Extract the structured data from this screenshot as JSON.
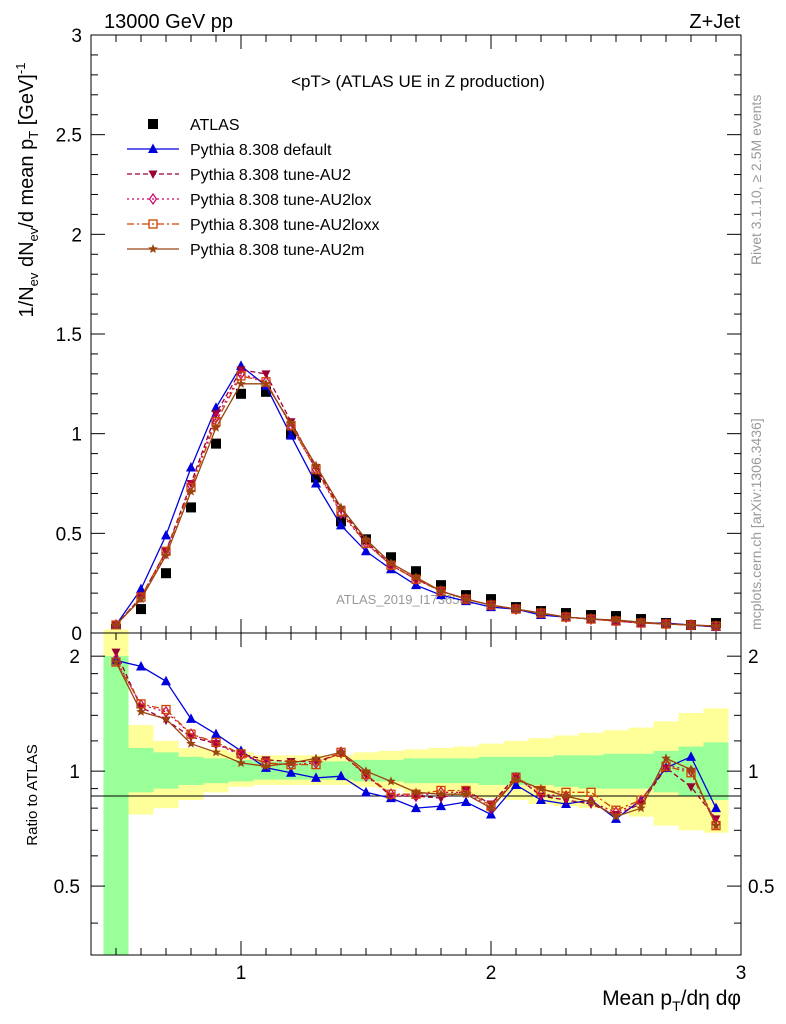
{
  "header": {
    "left": "13000 GeV pp",
    "right": "Z+Jet"
  },
  "side_labels": {
    "rivet": "Rivet 3.1.10, ≥ 2.5M events",
    "mcplots": "mcplots.cern.ch [arXiv:1306.3436]"
  },
  "watermark": "ATLAS_2019_I1736531",
  "chart_data": [
    {
      "type": "line",
      "title": "<pT> (ATLAS UE in Z production)",
      "ylabel": "1/N_ev dN_ev/d mean p_T [GeV]^-1",
      "xlabel": "Mean p_T/dη dφ",
      "xlim": [
        0.4,
        3.0
      ],
      "ylim": [
        0,
        3
      ],
      "x_ticks": [
        "1",
        "2",
        "3"
      ],
      "y_ticks": [
        "0",
        "0.5",
        "1",
        "1.5",
        "2",
        "2.5",
        "3"
      ],
      "legend_position": "top-left",
      "x": [
        0.5,
        0.6,
        0.7,
        0.8,
        0.9,
        1.0,
        1.1,
        1.2,
        1.3,
        1.4,
        1.5,
        1.6,
        1.7,
        1.8,
        1.9,
        2.0,
        2.1,
        2.2,
        2.3,
        2.4,
        2.5,
        2.6,
        2.7,
        2.8,
        2.9
      ],
      "series": [
        {
          "name": "ATLAS",
          "color": "#000000",
          "marker": "square",
          "dash": "none",
          "values": [
            0.02,
            0.12,
            0.3,
            0.63,
            0.95,
            1.2,
            1.21,
            1.0,
            0.78,
            0.56,
            0.47,
            0.38,
            0.31,
            0.24,
            0.19,
            0.17,
            0.13,
            0.11,
            0.1,
            0.09,
            0.085,
            0.07,
            0.05,
            0.04,
            0.05
          ]
        },
        {
          "name": "Pythia 8.308 default",
          "color": "#0000dd",
          "marker": "triangle-up",
          "dash": "none",
          "values": [
            0.04,
            0.22,
            0.49,
            0.83,
            1.13,
            1.34,
            1.24,
            0.99,
            0.75,
            0.54,
            0.41,
            0.32,
            0.24,
            0.19,
            0.16,
            0.13,
            0.12,
            0.09,
            0.08,
            0.07,
            0.06,
            0.05,
            0.05,
            0.04,
            0.03
          ]
        },
        {
          "name": "Pythia 8.308 tune-AU2",
          "color": "#990033",
          "marker": "triangle-down",
          "dash": "5,3",
          "values": [
            0.04,
            0.18,
            0.41,
            0.75,
            1.1,
            1.32,
            1.3,
            1.06,
            0.83,
            0.62,
            0.46,
            0.34,
            0.27,
            0.21,
            0.17,
            0.14,
            0.12,
            0.1,
            0.08,
            0.07,
            0.06,
            0.05,
            0.045,
            0.04,
            0.03
          ]
        },
        {
          "name": "Pythia 8.308 tune-AU2lox",
          "color": "#cc0066",
          "marker": "diamond",
          "dash": "2,3",
          "values": [
            0.04,
            0.18,
            0.4,
            0.74,
            1.08,
            1.3,
            1.26,
            1.04,
            0.82,
            0.6,
            0.45,
            0.34,
            0.27,
            0.21,
            0.17,
            0.14,
            0.12,
            0.1,
            0.08,
            0.07,
            0.06,
            0.05,
            0.045,
            0.04,
            0.035
          ]
        },
        {
          "name": "Pythia 8.308 tune-AU2loxx",
          "color": "#cc4400",
          "marker": "square-open",
          "dash": "7,3,2,3",
          "values": [
            0.04,
            0.18,
            0.41,
            0.73,
            1.06,
            1.29,
            1.26,
            1.04,
            0.82,
            0.61,
            0.45,
            0.34,
            0.27,
            0.21,
            0.17,
            0.14,
            0.12,
            0.1,
            0.08,
            0.07,
            0.06,
            0.05,
            0.045,
            0.04,
            0.035
          ]
        },
        {
          "name": "Pythia 8.308 tune-AU2m",
          "color": "#994411",
          "marker": "star",
          "dash": "none",
          "values": [
            0.04,
            0.17,
            0.39,
            0.71,
            1.03,
            1.25,
            1.25,
            1.05,
            0.84,
            0.63,
            0.47,
            0.35,
            0.28,
            0.21,
            0.17,
            0.14,
            0.12,
            0.1,
            0.08,
            0.07,
            0.065,
            0.055,
            0.045,
            0.04,
            0.035
          ]
        }
      ]
    },
    {
      "type": "line",
      "ylabel": "Ratio to ATLAS",
      "xlim": [
        0.4,
        3.0
      ],
      "ylim": [
        0.33,
        2.3
      ],
      "y_ticks": [
        "0.5",
        "1",
        "2"
      ],
      "x": [
        0.5,
        0.6,
        0.7,
        0.8,
        0.9,
        1.0,
        1.1,
        1.2,
        1.3,
        1.4,
        1.5,
        1.6,
        1.7,
        1.8,
        1.9,
        2.0,
        2.1,
        2.2,
        2.3,
        2.4,
        2.5,
        2.6,
        2.7,
        2.8,
        2.9
      ],
      "bands": {
        "green_low": [
          0.33,
          0.88,
          0.9,
          0.92,
          0.93,
          0.94,
          0.95,
          0.95,
          0.95,
          0.95,
          0.94,
          0.94,
          0.93,
          0.93,
          0.93,
          0.92,
          0.92,
          0.92,
          0.91,
          0.9,
          0.9,
          0.9,
          0.88,
          0.86,
          0.84
        ],
        "green_high": [
          2.0,
          1.15,
          1.12,
          1.09,
          1.08,
          1.07,
          1.06,
          1.06,
          1.06,
          1.06,
          1.07,
          1.07,
          1.08,
          1.08,
          1.08,
          1.09,
          1.09,
          1.09,
          1.1,
          1.1,
          1.11,
          1.11,
          1.13,
          1.16,
          1.19
        ],
        "yellow_low": [
          0.33,
          0.77,
          0.8,
          0.84,
          0.88,
          0.91,
          0.92,
          0.92,
          0.92,
          0.92,
          0.91,
          0.9,
          0.88,
          0.87,
          0.86,
          0.85,
          0.84,
          0.82,
          0.81,
          0.8,
          0.79,
          0.76,
          0.72,
          0.7,
          0.69
        ],
        "yellow_high": [
          2.35,
          1.32,
          1.2,
          1.15,
          1.14,
          1.12,
          1.1,
          1.1,
          1.1,
          1.1,
          1.12,
          1.13,
          1.14,
          1.15,
          1.16,
          1.18,
          1.2,
          1.22,
          1.24,
          1.26,
          1.28,
          1.3,
          1.35,
          1.42,
          1.46
        ]
      },
      "series": [
        {
          "name": "Pythia 8.308 default",
          "color": "#0000dd",
          "marker": "triangle-up",
          "dash": "none",
          "values": [
            1.95,
            1.88,
            1.72,
            1.37,
            1.25,
            1.13,
            1.02,
            0.99,
            0.96,
            0.97,
            0.88,
            0.85,
            0.8,
            0.81,
            0.83,
            0.77,
            0.92,
            0.84,
            0.82,
            0.84,
            0.75,
            0.84,
            1.02,
            1.09,
            0.8
          ]
        },
        {
          "name": "Pythia 8.308 tune-AU2",
          "color": "#990033",
          "marker": "triangle-down",
          "dash": "5,3",
          "values": [
            2.05,
            1.47,
            1.36,
            1.23,
            1.18,
            1.11,
            1.07,
            1.06,
            1.06,
            1.11,
            0.98,
            0.86,
            0.86,
            0.85,
            0.89,
            0.82,
            0.97,
            0.86,
            0.84,
            0.82,
            0.77,
            0.82,
            1.02,
            0.91,
            0.75
          ]
        },
        {
          "name": "Pythia 8.308 tune-AU2lox",
          "color": "#cc0066",
          "marker": "diamond",
          "dash": "2,3",
          "values": [
            1.96,
            1.49,
            1.43,
            1.25,
            1.18,
            1.1,
            1.05,
            1.04,
            1.05,
            1.12,
            0.97,
            0.87,
            0.86,
            0.88,
            0.88,
            0.8,
            0.96,
            0.87,
            0.86,
            0.83,
            0.78,
            0.83,
            1.04,
            1.0,
            0.73
          ]
        },
        {
          "name": "Pythia 8.308 tune-AU2loxx",
          "color": "#cc4400",
          "marker": "square-open",
          "dash": "7,3,2,3",
          "values": [
            1.93,
            1.5,
            1.45,
            1.25,
            1.19,
            1.11,
            1.05,
            1.04,
            1.04,
            1.12,
            0.98,
            0.87,
            0.87,
            0.89,
            0.89,
            0.81,
            0.96,
            0.89,
            0.88,
            0.88,
            0.79,
            0.84,
            1.03,
            0.99,
            0.72
          ]
        },
        {
          "name": "Pythia 8.308 tune-AU2m",
          "color": "#994411",
          "marker": "star",
          "dash": "none",
          "values": [
            1.93,
            1.43,
            1.37,
            1.18,
            1.12,
            1.05,
            1.03,
            1.05,
            1.08,
            1.12,
            1.0,
            0.94,
            0.88,
            0.87,
            0.87,
            0.8,
            0.95,
            0.9,
            0.86,
            0.83,
            0.76,
            0.8,
            1.08,
            1.01,
            0.72
          ]
        }
      ]
    }
  ]
}
